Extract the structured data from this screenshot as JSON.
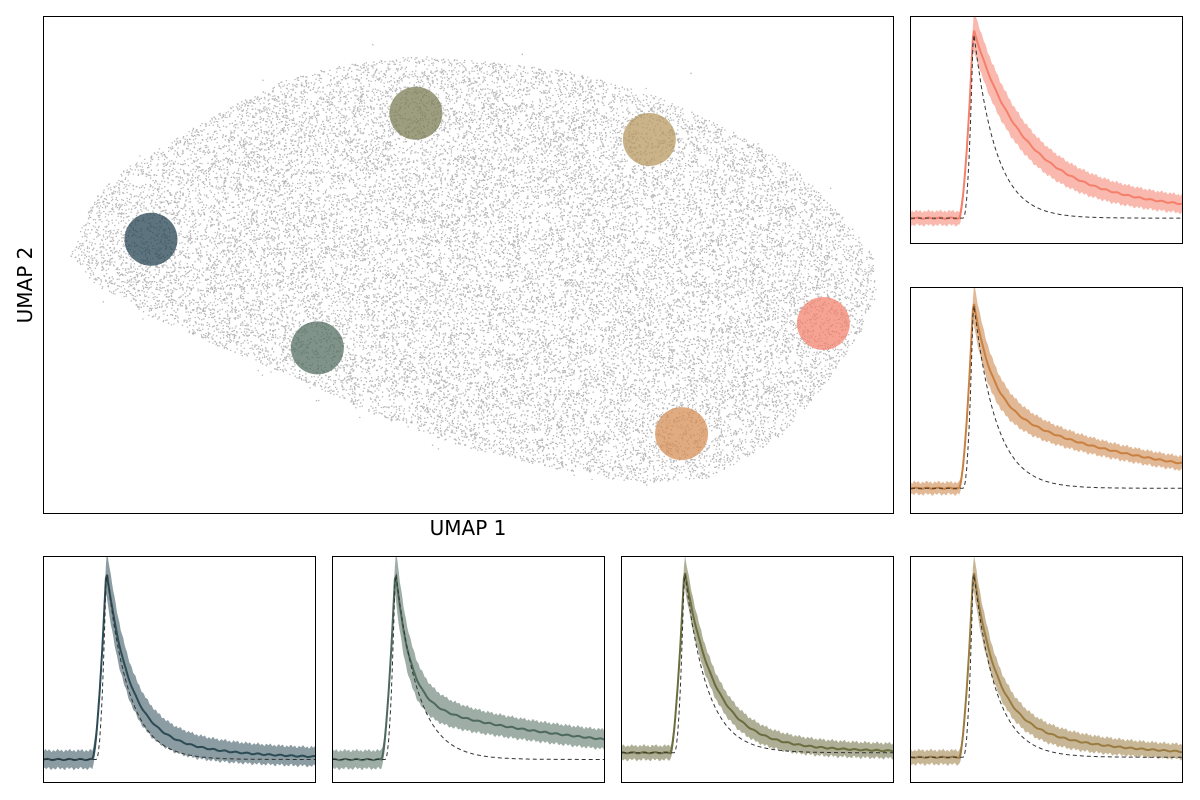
{
  "chart_data": [
    {
      "type": "scatter",
      "panel": "umap",
      "xlabel": "UMAP 1",
      "ylabel": "UMAP 2",
      "xlim": [
        0,
        1
      ],
      "ylim": [
        0,
        1
      ],
      "point_color": "#222222",
      "point_count_approx": 30000,
      "highlight_circles": [
        {
          "name": "c1",
          "color": "#1f3f4d",
          "x": 0.126,
          "y": 0.552
        },
        {
          "name": "c2",
          "color": "#4e6a5d",
          "x": 0.322,
          "y": 0.333
        },
        {
          "name": "c3",
          "color": "#76784d",
          "x": 0.438,
          "y": 0.806
        },
        {
          "name": "c4",
          "color": "#b5955a",
          "x": 0.713,
          "y": 0.753
        },
        {
          "name": "c5",
          "color": "#f4806b",
          "x": 0.918,
          "y": 0.382
        },
        {
          "name": "c6",
          "color": "#d68a50",
          "x": 0.751,
          "y": 0.16
        }
      ],
      "grid": false
    },
    {
      "type": "area",
      "panel": "trace-1",
      "color": "#f4806b",
      "legend": "none",
      "grid": false
    },
    {
      "type": "area",
      "panel": "trace-2",
      "color": "#c98040",
      "legend": "none",
      "grid": false
    },
    {
      "type": "area",
      "panel": "trace-3",
      "color": "#2c4b55",
      "legend": "none",
      "grid": false
    },
    {
      "type": "area",
      "panel": "trace-4",
      "color": "#4e6a5d",
      "legend": "none",
      "grid": false
    },
    {
      "type": "area",
      "panel": "trace-5",
      "color": "#6b6d3f",
      "legend": "none",
      "grid": false
    },
    {
      "type": "area",
      "panel": "trace-6",
      "color": "#9a7c42",
      "legend": "none",
      "grid": false
    }
  ]
}
